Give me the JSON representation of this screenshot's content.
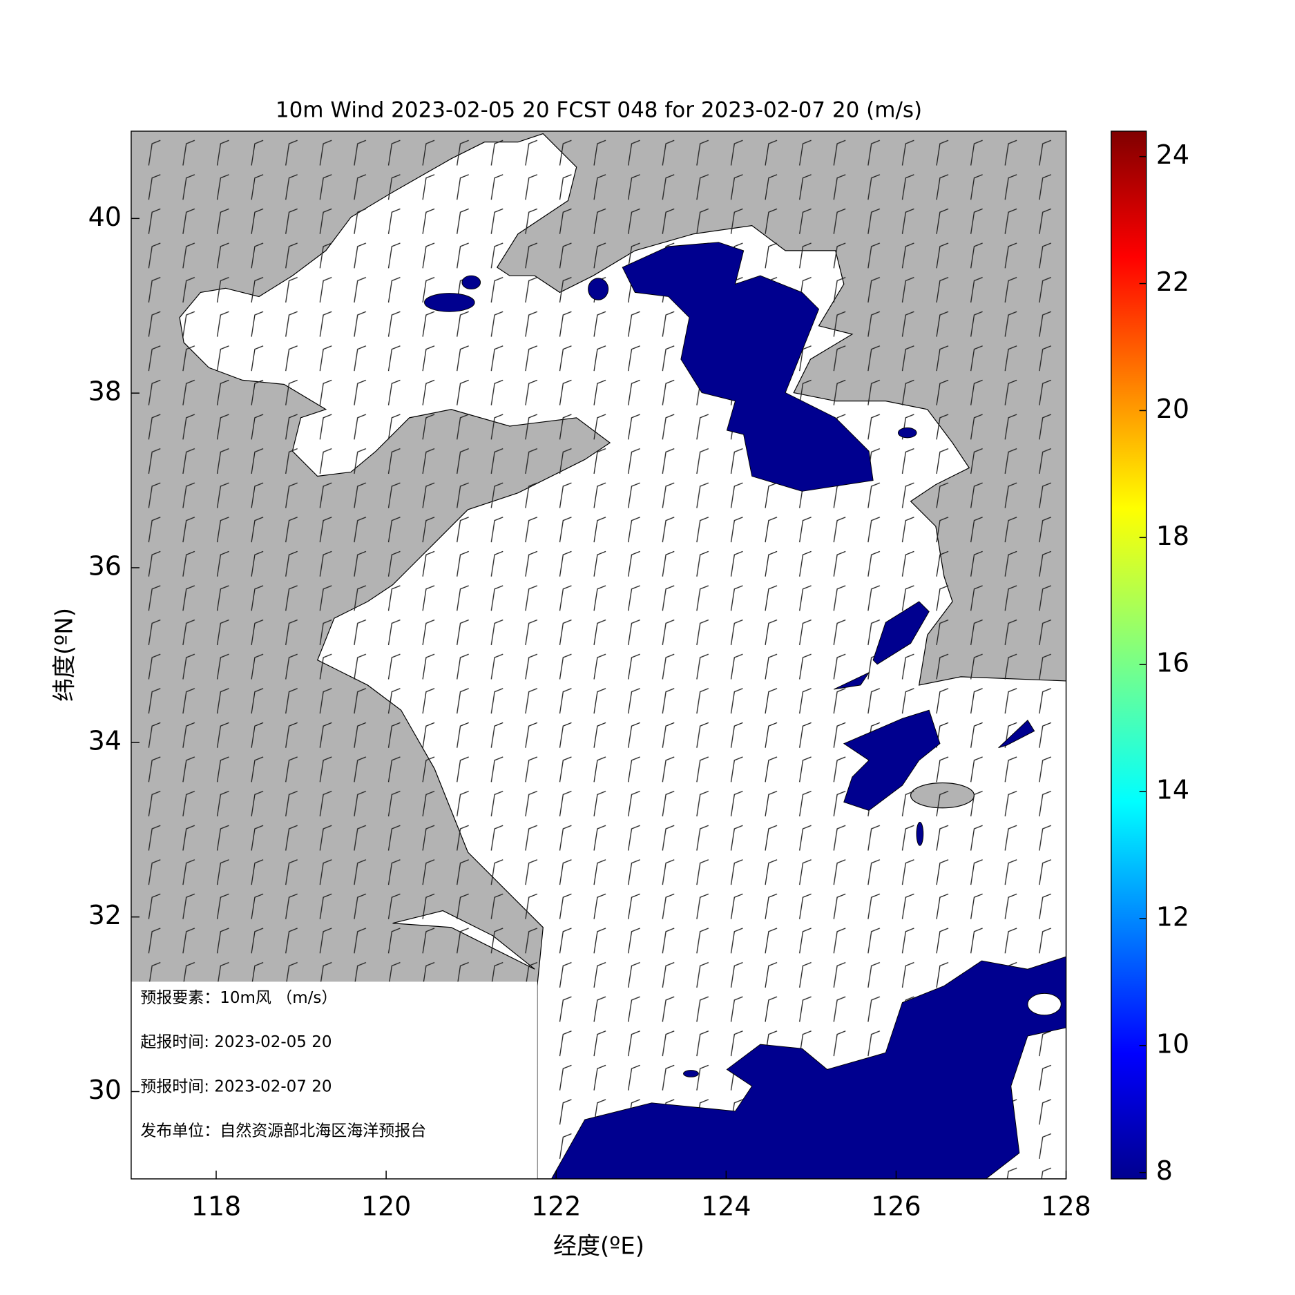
{
  "chart_data": {
    "type": "map",
    "title": "10m Wind 2023-02-05 20 FCST 048 for 2023-02-07 20 (m/s)",
    "xlabel": "经度(ºE)",
    "ylabel": "纬度(ºN)",
    "xlim": [
      117,
      128
    ],
    "ylim": [
      29,
      41
    ],
    "xticks": [
      118,
      120,
      122,
      124,
      126,
      128
    ],
    "yticks": [
      30,
      32,
      34,
      36,
      38,
      40
    ],
    "colorbar": {
      "clim": [
        7.9,
        24.4
      ],
      "ticks": [
        8,
        10,
        12,
        14,
        16,
        18,
        20,
        22,
        24
      ]
    },
    "info_box": [
      "预报要素：10m风 （m/s）",
      "起报时间: 2023-02-05 20",
      "预报时间: 2023-02-07 20",
      "发布单位：自然资源部北海区海洋预报台"
    ]
  }
}
